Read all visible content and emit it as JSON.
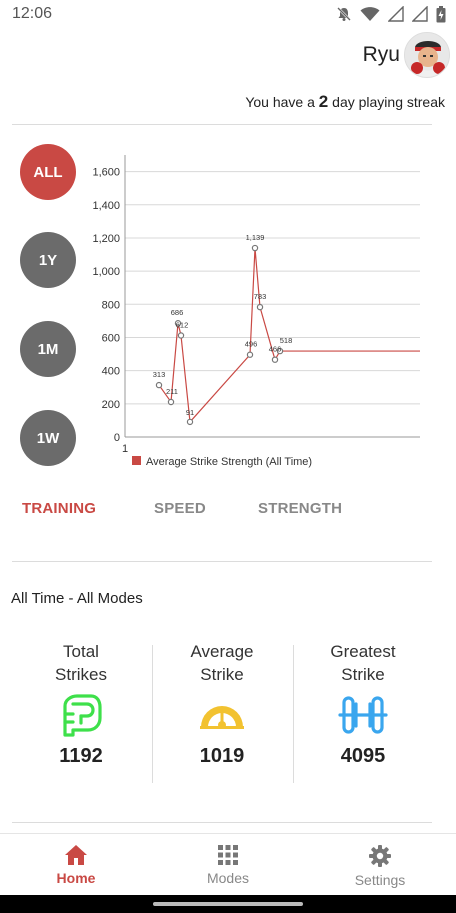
{
  "status_bar": {
    "time": "12:06"
  },
  "profile": {
    "name": "Ryu"
  },
  "streak": {
    "prefix": "You have a ",
    "count": "2",
    "suffix": " day playing streak"
  },
  "range_buttons": [
    {
      "label": "ALL",
      "active": true
    },
    {
      "label": "1Y",
      "active": false
    },
    {
      "label": "1M",
      "active": false
    },
    {
      "label": "1W",
      "active": false
    }
  ],
  "chart_data": {
    "type": "line",
    "x_tick_labels": [
      "1"
    ],
    "y_ticks": [
      "0",
      "200",
      "400",
      "600",
      "800",
      "1,000",
      "1,200",
      "1,400",
      "1,600"
    ],
    "ylim": [
      0,
      1700
    ],
    "grid": true,
    "legend_position": "bottom-left",
    "series": [
      {
        "name": "Average Strike Strength (All Time)",
        "color": "#c94944",
        "points": [
          {
            "x": 1,
            "y": 313,
            "label": "313"
          },
          {
            "x": 2,
            "y": 211,
            "label": "211"
          },
          {
            "x": 3,
            "y": 686,
            "label": "686"
          },
          {
            "x": 4,
            "y": 612,
            "label": "612"
          },
          {
            "x": 5,
            "y": 91,
            "label": "91"
          },
          {
            "x": 6,
            "y": 496,
            "label": "496"
          },
          {
            "x": 7,
            "y": 1139,
            "label": "1,139"
          },
          {
            "x": 8,
            "y": 783,
            "label": "783"
          },
          {
            "x": 9,
            "y": 466,
            "label": "466"
          },
          {
            "x": 10,
            "y": 518,
            "label": "518"
          }
        ]
      }
    ]
  },
  "mode_tabs": [
    {
      "label": "TRAINING",
      "active": true
    },
    {
      "label": "SPEED",
      "active": false
    },
    {
      "label": "STRENGTH",
      "active": false
    }
  ],
  "summary": {
    "title": "All Time - All Modes",
    "stats": [
      {
        "label_line1": "Total",
        "label_line2": "Strikes",
        "value": "1192",
        "icon": "fist-icon",
        "color": "#3ee04a"
      },
      {
        "label_line1": "Average",
        "label_line2": "Strike",
        "value": "1019",
        "icon": "gauge-icon",
        "color": "#f2c230"
      },
      {
        "label_line1": "Greatest",
        "label_line2": "Strike",
        "value": "4095",
        "icon": "dumbbell-icon",
        "color": "#3aa6ee"
      }
    ]
  },
  "bottom_nav": [
    {
      "label": "Home",
      "icon": "home-icon",
      "active": true
    },
    {
      "label": "Modes",
      "icon": "grid-icon",
      "active": false
    },
    {
      "label": "Settings",
      "icon": "gear-icon",
      "active": false
    }
  ]
}
